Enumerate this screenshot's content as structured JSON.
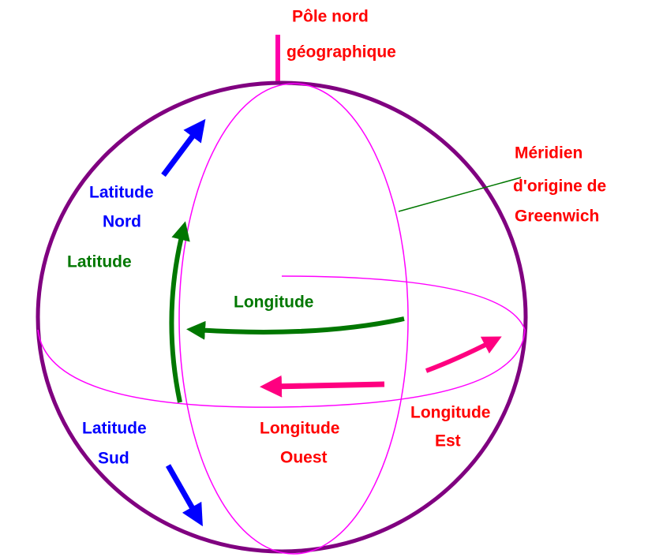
{
  "north_pole": [
    "Pôle nord",
    "géographique"
  ],
  "meridian": [
    "Méridien",
    "d'origine de",
    "Greenwich"
  ],
  "latitude_north": [
    "Latitude",
    "Nord"
  ],
  "latitude": "Latitude",
  "longitude": "Longitude",
  "latitude_south": [
    "Latitude",
    "Sud"
  ],
  "longitude_west": [
    "Longitude",
    "Ouest"
  ],
  "longitude_east": [
    "Longitude",
    "Est"
  ]
}
